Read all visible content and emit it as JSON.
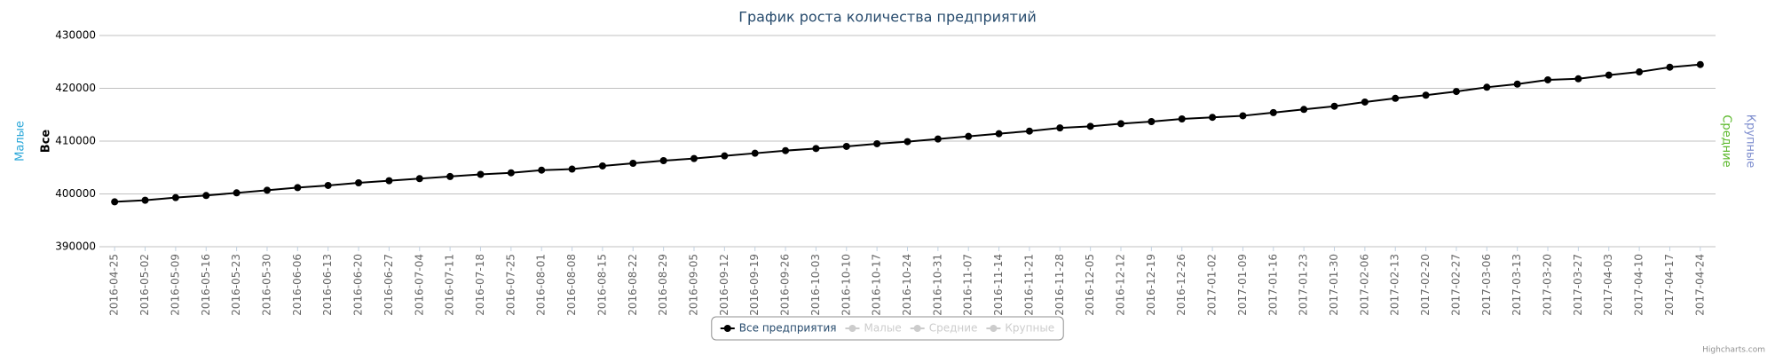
{
  "chart_data": {
    "type": "line",
    "title": "График роста количества предприятий",
    "categories": [
      "2016-04-25",
      "2016-05-02",
      "2016-05-09",
      "2016-05-16",
      "2016-05-23",
      "2016-05-30",
      "2016-06-06",
      "2016-06-13",
      "2016-06-20",
      "2016-06-27",
      "2016-07-04",
      "2016-07-11",
      "2016-07-18",
      "2016-07-25",
      "2016-08-01",
      "2016-08-08",
      "2016-08-15",
      "2016-08-22",
      "2016-08-29",
      "2016-09-05",
      "2016-09-12",
      "2016-09-19",
      "2016-09-26",
      "2016-10-03",
      "2016-10-10",
      "2016-10-17",
      "2016-10-24",
      "2016-10-31",
      "2016-11-07",
      "2016-11-14",
      "2016-11-21",
      "2016-11-28",
      "2016-12-05",
      "2016-12-12",
      "2016-12-19",
      "2016-12-26",
      "2017-01-02",
      "2017-01-09",
      "2017-01-16",
      "2017-01-23",
      "2017-01-30",
      "2017-02-06",
      "2017-02-13",
      "2017-02-20",
      "2017-02-27",
      "2017-03-06",
      "2017-03-13",
      "2017-03-20",
      "2017-03-27",
      "2017-04-03",
      "2017-04-10",
      "2017-04-17",
      "2017-04-24"
    ],
    "series": [
      {
        "name": "Все предприятия",
        "color": "#000000",
        "visible": true,
        "values": [
          398500,
          398800,
          399300,
          399700,
          400200,
          400700,
          401200,
          401600,
          402100,
          402500,
          402900,
          403300,
          403700,
          404000,
          404500,
          404700,
          405300,
          405800,
          406300,
          406700,
          407200,
          407700,
          408200,
          408600,
          409000,
          409500,
          409900,
          410400,
          410900,
          411400,
          411900,
          412500,
          412800,
          413300,
          413700,
          414200,
          414500,
          414800,
          415400,
          416000,
          416600,
          417400,
          418100,
          418700,
          419400,
          420200,
          420800,
          421600,
          421800,
          422500,
          423100,
          424000,
          424500
        ]
      },
      {
        "name": "Малые",
        "color": "#2aa7d9",
        "visible": false
      },
      {
        "name": "Средние",
        "color": "#5ab82a",
        "visible": false
      },
      {
        "name": "Крупные",
        "color": "#7f8fcf",
        "visible": false
      }
    ],
    "axis_titles": [
      {
        "text": "Малые",
        "color": "#2aa7d9",
        "side": "left"
      },
      {
        "text": "Все",
        "color": "#000000",
        "side": "left"
      },
      {
        "text": "Средние",
        "color": "#5ab82a",
        "side": "right"
      },
      {
        "text": "Крупные",
        "color": "#7f8fcf",
        "side": "right"
      }
    ],
    "ylim": [
      390000,
      430000
    ],
    "yticks": [
      390000,
      400000,
      410000,
      420000,
      430000
    ],
    "grid": true,
    "legend": "bottom",
    "credits": "Highcharts.com"
  }
}
